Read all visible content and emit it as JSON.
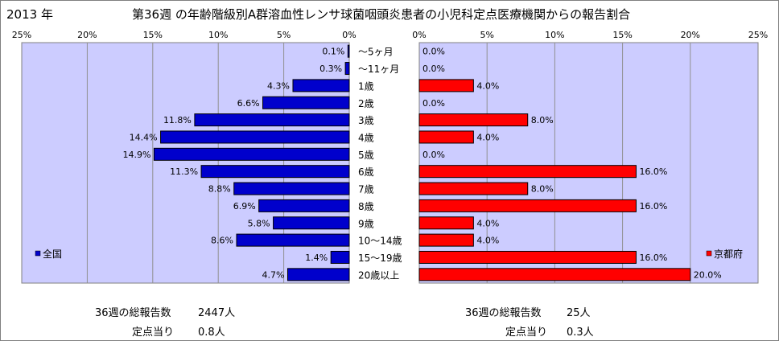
{
  "header": {
    "year": "2013 年",
    "title": "第36週 の年齢階級別A群溶血性レンサ球菌咽頭炎患者の小児科定点医療機関からの報告割合"
  },
  "chart_data": [
    {
      "type": "bar",
      "orientation": "horizontal",
      "direction": "right-to-left",
      "legend": "全国",
      "legend_position": "bottom-left",
      "color": "#0000cc",
      "xlim": [
        0,
        25
      ],
      "ticks": [
        "25%",
        "20%",
        "15%",
        "10%",
        "5%",
        "0%"
      ],
      "grid": true,
      "categories": [
        "〜5ヶ月",
        "〜11ヶ月",
        "1歳",
        "2歳",
        "3歳",
        "4歳",
        "5歳",
        "6歳",
        "7歳",
        "8歳",
        "9歳",
        "10〜14歳",
        "15〜19歳",
        "20歳以上"
      ],
      "values": [
        0.1,
        0.3,
        4.3,
        6.6,
        11.8,
        14.4,
        14.9,
        11.3,
        8.8,
        6.9,
        5.8,
        8.6,
        1.4,
        4.7
      ],
      "labels": [
        "0.1%",
        "0.3%",
        "4.3%",
        "6.6%",
        "11.8%",
        "14.4%",
        "14.9%",
        "11.3%",
        "8.8%",
        "6.9%",
        "5.8%",
        "8.6%",
        "1.4%",
        "4.7%"
      ]
    },
    {
      "type": "bar",
      "orientation": "horizontal",
      "direction": "left-to-right",
      "legend": "京都府",
      "legend_position": "bottom-right",
      "color": "#ff0000",
      "xlim": [
        0,
        25
      ],
      "ticks": [
        "0%",
        "5%",
        "10%",
        "15%",
        "20%",
        "25%"
      ],
      "grid": true,
      "categories": [
        "〜5ヶ月",
        "〜11ヶ月",
        "1歳",
        "2歳",
        "3歳",
        "4歳",
        "5歳",
        "6歳",
        "7歳",
        "8歳",
        "9歳",
        "10〜14歳",
        "15〜19歳",
        "20歳以上"
      ],
      "values": [
        0,
        0,
        4,
        0,
        8,
        4,
        0,
        16,
        8,
        16,
        4,
        4,
        16,
        20
      ],
      "labels": [
        "0.0%",
        "0.0%",
        "4.0%",
        "0.0%",
        "8.0%",
        "4.0%",
        "0.0%",
        "16.0%",
        "8.0%",
        "16.0%",
        "4.0%",
        "4.0%",
        "16.0%",
        "20.0%"
      ]
    }
  ],
  "summary": {
    "national": {
      "total_label": "36週の総報告数",
      "total_value": "2447人",
      "per_label": "定点当り",
      "per_value": "0.8人"
    },
    "kyoto": {
      "total_label": "36週の総報告数",
      "total_value": "25人",
      "per_label": "定点当り",
      "per_value": "0.3人"
    }
  }
}
